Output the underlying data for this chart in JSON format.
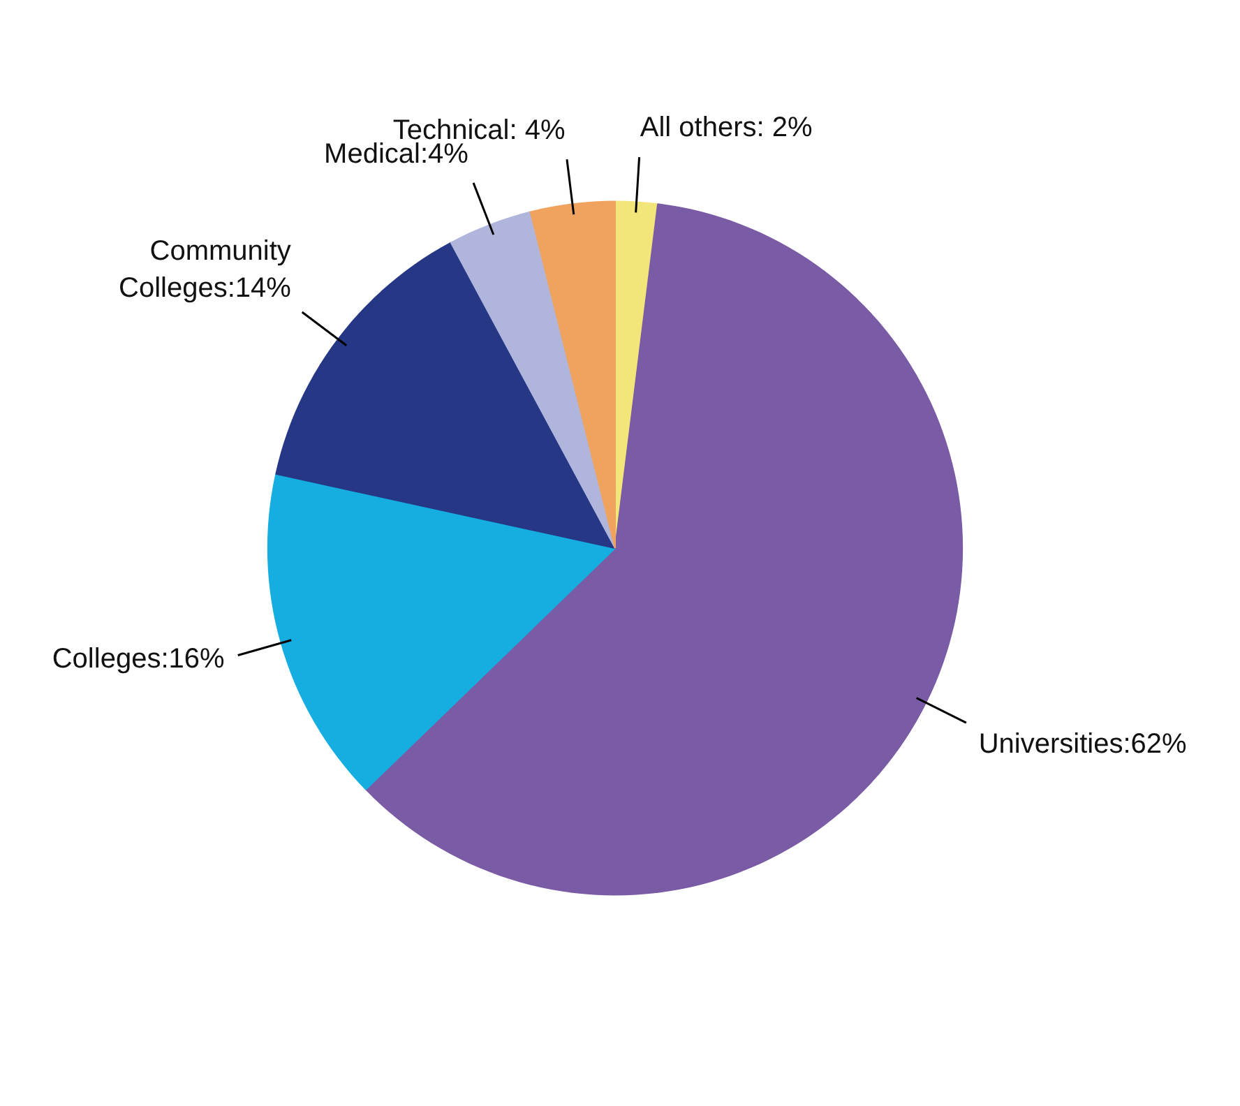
{
  "chart_data": {
    "type": "pie",
    "categories": [
      "All others",
      "Universities",
      "Colleges",
      "Community Colleges",
      "Medical",
      "Technical"
    ],
    "values": [
      2,
      62,
      16,
      14,
      4,
      4
    ],
    "colors": [
      "#f2e57a",
      "#7a5ba5",
      "#16aee0",
      "#253785",
      "#b0b5dc",
      "#f0a35e"
    ],
    "value_labels": [
      " 2%",
      "62%",
      "16%",
      "14%",
      "4%",
      " 4%"
    ]
  }
}
